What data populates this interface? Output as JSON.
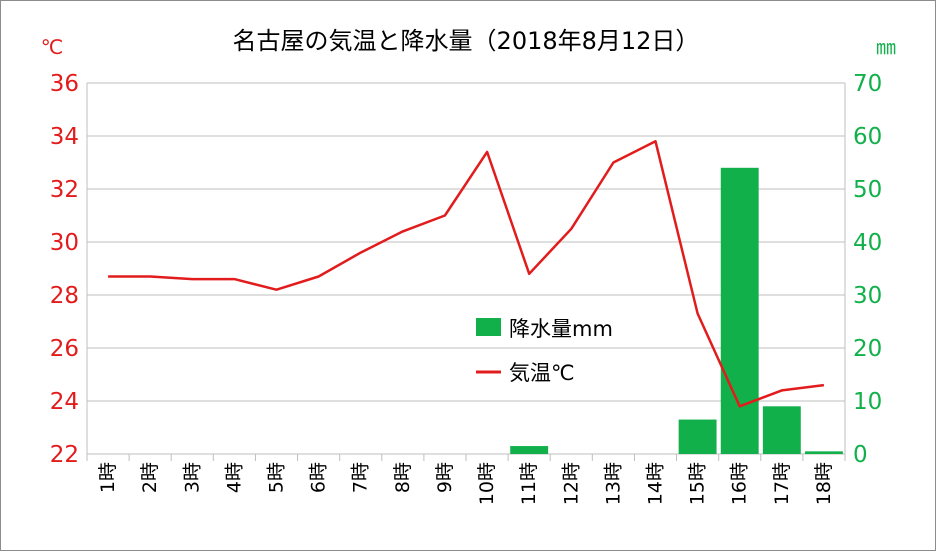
{
  "chart_data": {
    "type": "bar+line",
    "title": "名古屋の気温と降水量（2018年8月12日）",
    "categories": [
      "1時",
      "2時",
      "3時",
      "4時",
      "5時",
      "6時",
      "7時",
      "8時",
      "9時",
      "10時",
      "11時",
      "12時",
      "13時",
      "14時",
      "15時",
      "16時",
      "17時",
      "18時"
    ],
    "series": [
      {
        "name": "降水量mm",
        "type": "bar",
        "axis": "right",
        "color": "#12b04b",
        "values": [
          0,
          0,
          0,
          0,
          0,
          0,
          0,
          0,
          0,
          0,
          1.5,
          0,
          0,
          0,
          6.5,
          54,
          9,
          0.5
        ]
      },
      {
        "name": "気温℃",
        "type": "line",
        "axis": "left",
        "color": "#e21c1c",
        "values": [
          28.7,
          28.7,
          28.6,
          28.6,
          28.2,
          28.7,
          29.6,
          30.4,
          31.0,
          33.4,
          28.8,
          30.5,
          33.0,
          33.8,
          27.3,
          23.8,
          24.4,
          24.6
        ]
      }
    ],
    "y_left": {
      "unit": "℃",
      "min": 22,
      "max": 36,
      "ticks": [
        "22",
        "24",
        "26",
        "28",
        "30",
        "32",
        "34",
        "36"
      ]
    },
    "y_right": {
      "unit": "㎜",
      "min": 0,
      "max": 70,
      "ticks": [
        "0",
        "10",
        "20",
        "30",
        "40",
        "50",
        "60",
        "70"
      ]
    },
    "legend": [
      {
        "label": "降水量mm",
        "symbol": "bar",
        "color": "#12b04b"
      },
      {
        "label": "気温℃",
        "symbol": "line",
        "color": "#e21c1c"
      }
    ],
    "legend_position": "inside-right",
    "grid": true
  }
}
